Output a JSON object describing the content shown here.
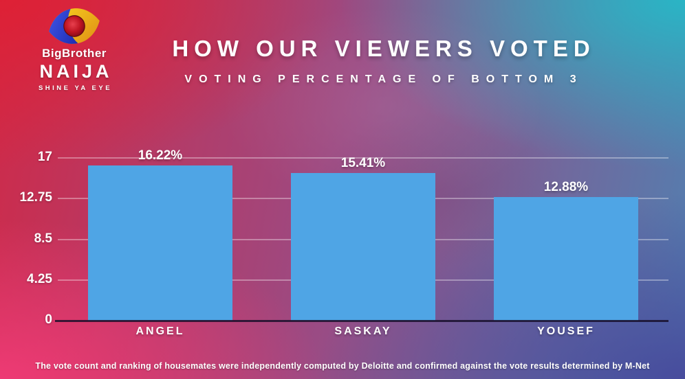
{
  "logo": {
    "brand": "BigBrother",
    "name": "NAIJA",
    "tagline": "SHINE YA EYE",
    "eye_colors": {
      "left": "#2c3cd4",
      "right": "#f2c51d",
      "center": "#c0121f"
    }
  },
  "header": {
    "title": "HOW OUR VIEWERS VOTED",
    "subtitle": "VOTING PERCENTAGE OF BOTTOM 3"
  },
  "chart_data": {
    "type": "bar",
    "title": "HOW OUR VIEWERS VOTED",
    "subtitle": "VOTING PERCENTAGE OF BOTTOM 3",
    "categories": [
      "ANGEL",
      "SASKAY",
      "YOUSEF"
    ],
    "values": [
      16.22,
      15.41,
      12.88
    ],
    "value_labels": [
      "16.22%",
      "15.41%",
      "12.88%"
    ],
    "yticks": [
      0,
      4.25,
      8.5,
      12.75,
      17
    ],
    "ylim": [
      0,
      17
    ],
    "xlabel": "",
    "ylabel": "",
    "grid": true,
    "legend": false,
    "bar_color": "#4fa5e5"
  },
  "footer": {
    "disclaimer": "The vote count and ranking of housemates were independently computed by Deloitte and confirmed against the vote results determined by M-Net"
  },
  "colors": {
    "corner_top_left": "#de2134",
    "corner_top_right": "#29b7c6",
    "corner_bottom_left": "#ee3b75",
    "corner_bottom_right": "#474a9c",
    "bar": "#4fa5e5",
    "gridline": "rgba(255,255,255,0.35)",
    "text": "#ffffff"
  }
}
